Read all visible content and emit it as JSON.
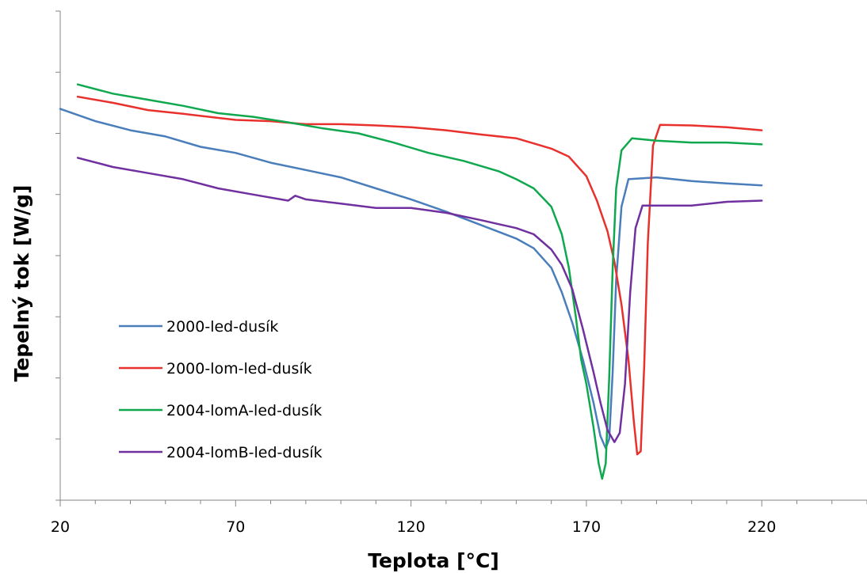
{
  "chart_data": {
    "type": "line",
    "xlabel": "Teplota [°C]",
    "ylabel": "Tepelný tok [W/g]",
    "xlim": [
      20,
      250
    ],
    "ylim": [
      0,
      8
    ],
    "x_ticks": [
      20,
      70,
      120,
      170,
      220
    ],
    "y_tick_labels_shown": false,
    "grid": false,
    "legend_position": "lower-left",
    "series": [
      {
        "name": "2000-led-dusík",
        "color": "#4a7ebb",
        "points": [
          [
            20,
            6.4
          ],
          [
            30,
            6.2
          ],
          [
            40,
            6.05
          ],
          [
            50,
            5.95
          ],
          [
            60,
            5.78
          ],
          [
            70,
            5.68
          ],
          [
            80,
            5.52
          ],
          [
            90,
            5.4
          ],
          [
            100,
            5.28
          ],
          [
            110,
            5.1
          ],
          [
            120,
            4.92
          ],
          [
            130,
            4.72
          ],
          [
            140,
            4.5
          ],
          [
            150,
            4.28
          ],
          [
            155,
            4.12
          ],
          [
            160,
            3.8
          ],
          [
            163,
            3.4
          ],
          [
            166,
            2.9
          ],
          [
            169,
            2.3
          ],
          [
            172,
            1.6
          ],
          [
            174,
            1.05
          ],
          [
            175.5,
            0.85
          ],
          [
            176.5,
            1.0
          ],
          [
            177.5,
            2.1
          ],
          [
            178.5,
            3.6
          ],
          [
            180,
            4.8
          ],
          [
            182,
            5.25
          ],
          [
            190,
            5.28
          ],
          [
            200,
            5.22
          ],
          [
            210,
            5.18
          ],
          [
            220,
            5.15
          ]
        ]
      },
      {
        "name": "2000-lom-led-dusík",
        "color": "#e8312d",
        "points": [
          [
            25,
            6.6
          ],
          [
            35,
            6.5
          ],
          [
            45,
            6.38
          ],
          [
            55,
            6.32
          ],
          [
            70,
            6.22
          ],
          [
            80,
            6.2
          ],
          [
            90,
            6.15
          ],
          [
            100,
            6.15
          ],
          [
            110,
            6.13
          ],
          [
            120,
            6.1
          ],
          [
            130,
            6.05
          ],
          [
            140,
            5.98
          ],
          [
            150,
            5.92
          ],
          [
            160,
            5.75
          ],
          [
            165,
            5.62
          ],
          [
            170,
            5.3
          ],
          [
            173,
            4.9
          ],
          [
            176,
            4.4
          ],
          [
            178,
            3.9
          ],
          [
            180,
            3.2
          ],
          [
            182,
            2.3
          ],
          [
            183.5,
            1.3
          ],
          [
            184.5,
            0.75
          ],
          [
            185.5,
            0.8
          ],
          [
            186.5,
            2.2
          ],
          [
            187.5,
            4.2
          ],
          [
            189,
            5.8
          ],
          [
            191,
            6.14
          ],
          [
            200,
            6.13
          ],
          [
            210,
            6.1
          ],
          [
            220,
            6.05
          ]
        ]
      },
      {
        "name": "2004-lomA-led-dusík",
        "color": "#10a84f",
        "points": [
          [
            25,
            6.8
          ],
          [
            35,
            6.65
          ],
          [
            45,
            6.55
          ],
          [
            55,
            6.45
          ],
          [
            65,
            6.33
          ],
          [
            75,
            6.27
          ],
          [
            85,
            6.18
          ],
          [
            95,
            6.08
          ],
          [
            105,
            6.0
          ],
          [
            115,
            5.85
          ],
          [
            125,
            5.68
          ],
          [
            135,
            5.55
          ],
          [
            145,
            5.38
          ],
          [
            150,
            5.25
          ],
          [
            155,
            5.1
          ],
          [
            160,
            4.8
          ],
          [
            163,
            4.35
          ],
          [
            165,
            3.8
          ],
          [
            167,
            3.0
          ],
          [
            168.5,
            2.3
          ],
          [
            170,
            1.9
          ],
          [
            172,
            1.2
          ],
          [
            173.5,
            0.6
          ],
          [
            174.5,
            0.35
          ],
          [
            175.5,
            0.6
          ],
          [
            176.5,
            2.0
          ],
          [
            177.5,
            3.8
          ],
          [
            178.5,
            5.1
          ],
          [
            180,
            5.72
          ],
          [
            183,
            5.92
          ],
          [
            190,
            5.88
          ],
          [
            200,
            5.85
          ],
          [
            210,
            5.85
          ],
          [
            220,
            5.82
          ]
        ]
      },
      {
        "name": "2004-lomB-led-dusík",
        "color": "#7030a0",
        "points": [
          [
            25,
            5.6
          ],
          [
            35,
            5.45
          ],
          [
            45,
            5.35
          ],
          [
            55,
            5.25
          ],
          [
            65,
            5.1
          ],
          [
            75,
            5.0
          ],
          [
            85,
            4.9
          ],
          [
            87,
            4.98
          ],
          [
            90,
            4.92
          ],
          [
            100,
            4.85
          ],
          [
            110,
            4.78
          ],
          [
            120,
            4.78
          ],
          [
            130,
            4.7
          ],
          [
            140,
            4.58
          ],
          [
            150,
            4.45
          ],
          [
            155,
            4.35
          ],
          [
            160,
            4.1
          ],
          [
            163,
            3.85
          ],
          [
            166,
            3.45
          ],
          [
            169,
            2.8
          ],
          [
            172,
            2.1
          ],
          [
            174,
            1.6
          ],
          [
            176,
            1.15
          ],
          [
            178,
            0.95
          ],
          [
            179.5,
            1.1
          ],
          [
            181,
            1.9
          ],
          [
            182.5,
            3.4
          ],
          [
            184,
            4.45
          ],
          [
            186,
            4.82
          ],
          [
            190,
            4.82
          ],
          [
            200,
            4.82
          ],
          [
            210,
            4.88
          ],
          [
            220,
            4.9
          ]
        ]
      }
    ]
  }
}
